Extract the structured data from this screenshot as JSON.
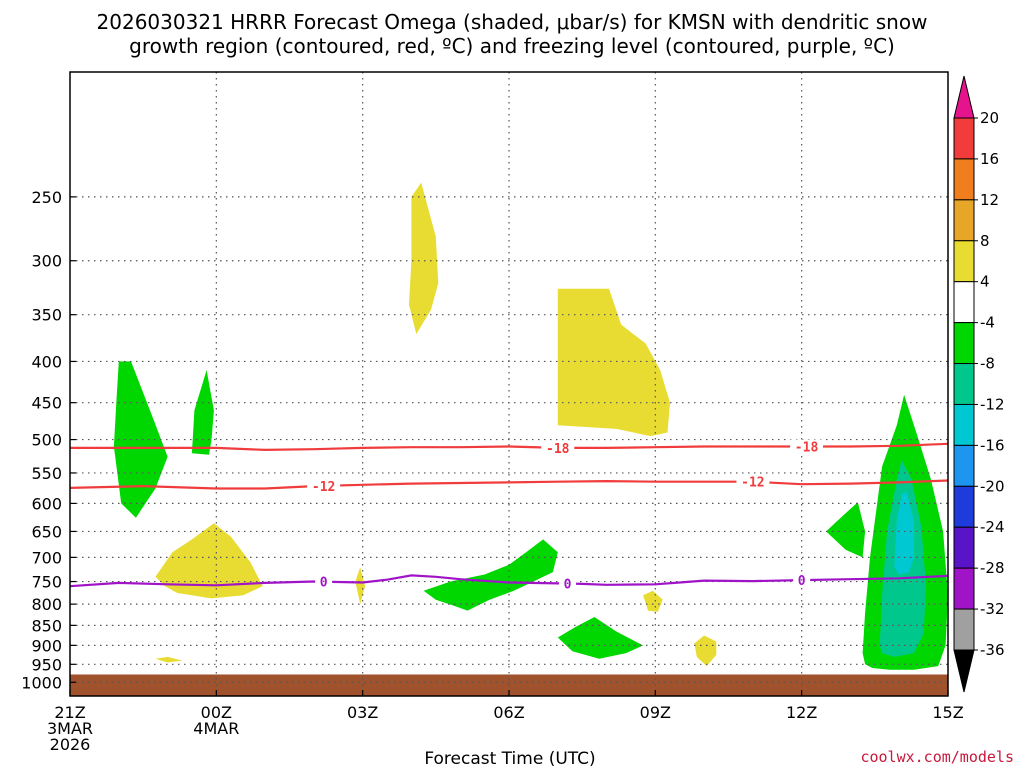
{
  "chart_data": {
    "type": "contour-time-height",
    "title_line1": "2026030321 HRRR Forecast Omega (shaded, μbar/s) for KMSN with dendritic snow",
    "title_line2": "growth region (contoured, red, ºC) and freezing level (contoured, purple, ºC)",
    "xlabel": "Forecast Time (UTC)",
    "credit": "coolwx.com/models",
    "x_range_hours": [
      0,
      18
    ],
    "x_ticks": [
      {
        "hour": 0,
        "lines": [
          "21Z",
          "3MAR",
          "2026"
        ]
      },
      {
        "hour": 3,
        "lines": [
          "00Z",
          "4MAR"
        ]
      },
      {
        "hour": 6,
        "lines": [
          "03Z"
        ]
      },
      {
        "hour": 9,
        "lines": [
          "06Z"
        ]
      },
      {
        "hour": 12,
        "lines": [
          "09Z"
        ]
      },
      {
        "hour": 15,
        "lines": [
          "12Z"
        ]
      },
      {
        "hour": 18,
        "lines": [
          "15Z"
        ]
      }
    ],
    "y_range_hpa": [
      1040,
      175
    ],
    "y_ticks": [
      250,
      300,
      350,
      400,
      450,
      500,
      550,
      600,
      650,
      700,
      750,
      800,
      850,
      900,
      950,
      1000
    ],
    "colorbar": {
      "labels": [
        "20",
        "16",
        "12",
        "8",
        "4",
        "-4",
        "-8",
        "-12",
        "-16",
        "-20",
        "-24",
        "-28",
        "-32",
        "-36"
      ],
      "bins": [
        {
          "lo": 16,
          "hi": 20,
          "color": "#f23c3c"
        },
        {
          "lo": 12,
          "hi": 16,
          "color": "#f07d1e"
        },
        {
          "lo": 8,
          "hi": 12,
          "color": "#e8a628"
        },
        {
          "lo": 4,
          "hi": 8,
          "color": "#e8dc32"
        },
        {
          "lo": -4,
          "hi": 4,
          "color": "#ffffff"
        },
        {
          "lo": -8,
          "hi": -4,
          "color": "#00d700"
        },
        {
          "lo": -12,
          "hi": -8,
          "color": "#00c88c"
        },
        {
          "lo": -16,
          "hi": -12,
          "color": "#00c8d2"
        },
        {
          "lo": -20,
          "hi": -16,
          "color": "#1e96f0"
        },
        {
          "lo": -24,
          "hi": -20,
          "color": "#1e3cdc"
        },
        {
          "lo": -28,
          "hi": -24,
          "color": "#5a14c8"
        },
        {
          "lo": -32,
          "hi": -28,
          "color": "#a014c8"
        },
        {
          "lo": -36,
          "hi": -32,
          "color": "#a0a0a0"
        }
      ],
      "over_color": "#e6148c",
      "under_color": "#000000"
    },
    "omega_regions": [
      {
        "value": -6,
        "color": "#00d700",
        "points": [
          [
            0.95,
            450
          ],
          [
            1.0,
            400
          ],
          [
            1.25,
            400
          ],
          [
            1.7,
            470
          ],
          [
            2.0,
            525
          ],
          [
            1.75,
            575
          ],
          [
            1.35,
            625
          ],
          [
            1.05,
            600
          ],
          [
            0.9,
            510
          ]
        ]
      },
      {
        "value": -6,
        "color": "#00d700",
        "points": [
          [
            2.5,
            520
          ],
          [
            2.55,
            460
          ],
          [
            2.8,
            410
          ],
          [
            2.95,
            460
          ],
          [
            2.9,
            500
          ],
          [
            2.85,
            522
          ]
        ]
      },
      {
        "value": 6,
        "color": "#e8dc32",
        "points": [
          [
            7.0,
            250
          ],
          [
            7.2,
            240
          ],
          [
            7.5,
            280
          ],
          [
            7.55,
            320
          ],
          [
            7.4,
            345
          ],
          [
            7.1,
            370
          ],
          [
            6.95,
            340
          ],
          [
            7.0,
            300
          ]
        ]
      },
      {
        "value": 6,
        "color": "#e8dc32",
        "points": [
          [
            10.0,
            325
          ],
          [
            11.05,
            325
          ],
          [
            11.3,
            360
          ],
          [
            11.8,
            380
          ],
          [
            12.1,
            410
          ],
          [
            12.3,
            450
          ],
          [
            12.25,
            490
          ],
          [
            11.9,
            495
          ],
          [
            11.2,
            485
          ],
          [
            10.0,
            480
          ]
        ]
      },
      {
        "value": 6,
        "color": "#e8dc32",
        "points": [
          [
            1.75,
            740
          ],
          [
            2.1,
            690
          ],
          [
            2.5,
            665
          ],
          [
            2.95,
            635
          ],
          [
            3.3,
            660
          ],
          [
            3.7,
            710
          ],
          [
            3.95,
            760
          ],
          [
            3.55,
            780
          ],
          [
            2.9,
            787
          ],
          [
            2.2,
            775
          ],
          [
            1.95,
            760
          ]
        ]
      },
      {
        "value": 6,
        "color": "#e8dc32",
        "points": [
          [
            5.85,
            750
          ],
          [
            5.95,
            720
          ],
          [
            6.05,
            760
          ],
          [
            5.95,
            800
          ]
        ]
      },
      {
        "value": 6,
        "color": "#e8dc32",
        "points": [
          [
            11.75,
            780
          ],
          [
            11.95,
            770
          ],
          [
            12.15,
            790
          ],
          [
            12.05,
            818
          ],
          [
            11.85,
            815
          ]
        ]
      },
      {
        "value": 6,
        "color": "#e8dc32",
        "points": [
          [
            12.8,
            895
          ],
          [
            13.0,
            875
          ],
          [
            13.25,
            890
          ],
          [
            13.25,
            925
          ],
          [
            13.05,
            955
          ],
          [
            12.85,
            930
          ]
        ]
      },
      {
        "value": 6,
        "color": "#e8dc32",
        "points": [
          [
            1.75,
            935
          ],
          [
            2.0,
            930
          ],
          [
            2.3,
            940
          ],
          [
            2.0,
            945
          ]
        ]
      },
      {
        "value": -6,
        "color": "#00d700",
        "points": [
          [
            7.25,
            770
          ],
          [
            7.8,
            750
          ],
          [
            8.5,
            735
          ],
          [
            9.0,
            715
          ],
          [
            9.35,
            690
          ],
          [
            9.7,
            665
          ],
          [
            10.0,
            690
          ],
          [
            9.9,
            730
          ],
          [
            9.5,
            750
          ],
          [
            9.1,
            770
          ],
          [
            8.6,
            790
          ],
          [
            8.15,
            815
          ],
          [
            7.9,
            805
          ],
          [
            7.5,
            790
          ]
        ]
      },
      {
        "value": -6,
        "color": "#00d700",
        "points": [
          [
            10.0,
            880
          ],
          [
            10.35,
            855
          ],
          [
            10.75,
            830
          ],
          [
            11.2,
            865
          ],
          [
            11.75,
            900
          ],
          [
            11.4,
            920
          ],
          [
            10.85,
            935
          ],
          [
            10.3,
            915
          ]
        ]
      },
      {
        "value": -6,
        "color": "#00d700",
        "points": [
          [
            15.5,
            650
          ],
          [
            15.8,
            625
          ],
          [
            16.15,
            598
          ],
          [
            16.3,
            650
          ],
          [
            16.25,
            700
          ],
          [
            15.9,
            685
          ]
        ]
      },
      {
        "value": -6,
        "color": "#00d700",
        "points": [
          [
            16.25,
            920
          ],
          [
            16.3,
            820
          ],
          [
            16.4,
            700
          ],
          [
            16.65,
            540
          ],
          [
            16.95,
            480
          ],
          [
            17.1,
            440
          ],
          [
            17.35,
            490
          ],
          [
            17.65,
            560
          ],
          [
            17.9,
            650
          ],
          [
            18.0,
            780
          ],
          [
            17.95,
            900
          ],
          [
            17.8,
            955
          ],
          [
            17.3,
            965
          ],
          [
            16.8,
            965
          ],
          [
            16.45,
            960
          ],
          [
            16.3,
            950
          ]
        ]
      },
      {
        "value": -10,
        "color": "#00c88c",
        "points": [
          [
            16.6,
            900
          ],
          [
            16.65,
            780
          ],
          [
            16.75,
            650
          ],
          [
            16.95,
            560
          ],
          [
            17.05,
            530
          ],
          [
            17.25,
            560
          ],
          [
            17.45,
            640
          ],
          [
            17.55,
            760
          ],
          [
            17.5,
            870
          ],
          [
            17.3,
            920
          ],
          [
            16.9,
            930
          ],
          [
            16.65,
            920
          ]
        ]
      },
      {
        "value": -14,
        "color": "#00c8d2",
        "points": [
          [
            16.9,
            720
          ],
          [
            16.95,
            630
          ],
          [
            17.05,
            585
          ],
          [
            17.15,
            580
          ],
          [
            17.3,
            630
          ],
          [
            17.3,
            700
          ],
          [
            17.2,
            730
          ],
          [
            17.0,
            735
          ]
        ]
      }
    ],
    "ground": {
      "from_hpa": 978,
      "color": "#a0522d"
    },
    "dgz_contours": [
      {
        "label": "-18",
        "color": "#f03c3c",
        "points": [
          [
            0,
            512
          ],
          [
            1.5,
            512
          ],
          [
            3,
            512
          ],
          [
            4,
            515
          ],
          [
            5,
            514
          ],
          [
            6,
            512
          ],
          [
            7,
            511
          ],
          [
            8,
            511
          ],
          [
            9,
            510
          ],
          [
            10,
            512
          ],
          [
            11,
            512
          ],
          [
            12,
            511
          ],
          [
            13,
            510
          ],
          [
            14,
            510
          ],
          [
            15,
            510
          ],
          [
            16,
            510
          ],
          [
            17,
            509
          ],
          [
            18,
            506
          ]
        ],
        "label_hours": [
          10.0,
          15.1
        ]
      },
      {
        "label": "-12",
        "color": "#f03c3c",
        "points": [
          [
            0,
            574
          ],
          [
            1.5,
            571
          ],
          [
            3,
            575
          ],
          [
            4,
            575
          ],
          [
            5,
            571
          ],
          [
            6,
            569
          ],
          [
            7,
            567
          ],
          [
            8,
            566
          ],
          [
            9,
            565
          ],
          [
            10,
            564
          ],
          [
            11,
            563
          ],
          [
            12,
            564
          ],
          [
            13,
            564
          ],
          [
            14,
            564
          ],
          [
            15,
            568
          ],
          [
            16,
            567
          ],
          [
            17,
            565
          ],
          [
            18,
            562
          ]
        ],
        "label_hours": [
          5.2,
          14.0
        ]
      },
      {
        "label": "0",
        "color": "#a014c8",
        "points": [
          [
            0,
            760
          ],
          [
            1,
            753
          ],
          [
            2,
            756
          ],
          [
            3,
            758
          ],
          [
            4,
            753
          ],
          [
            5,
            750
          ],
          [
            6,
            752
          ],
          [
            6.5,
            746
          ],
          [
            7,
            737
          ],
          [
            7.5,
            740
          ],
          [
            8,
            745
          ],
          [
            9,
            752
          ],
          [
            10,
            754
          ],
          [
            10.5,
            755
          ],
          [
            11,
            757
          ],
          [
            12,
            756
          ],
          [
            12.5,
            752
          ],
          [
            13,
            748
          ],
          [
            14,
            749
          ],
          [
            15,
            747
          ],
          [
            16,
            745
          ],
          [
            17,
            743
          ],
          [
            18,
            738
          ]
        ],
        "label_hours": [
          5.2,
          10.2,
          15.0
        ]
      }
    ]
  }
}
